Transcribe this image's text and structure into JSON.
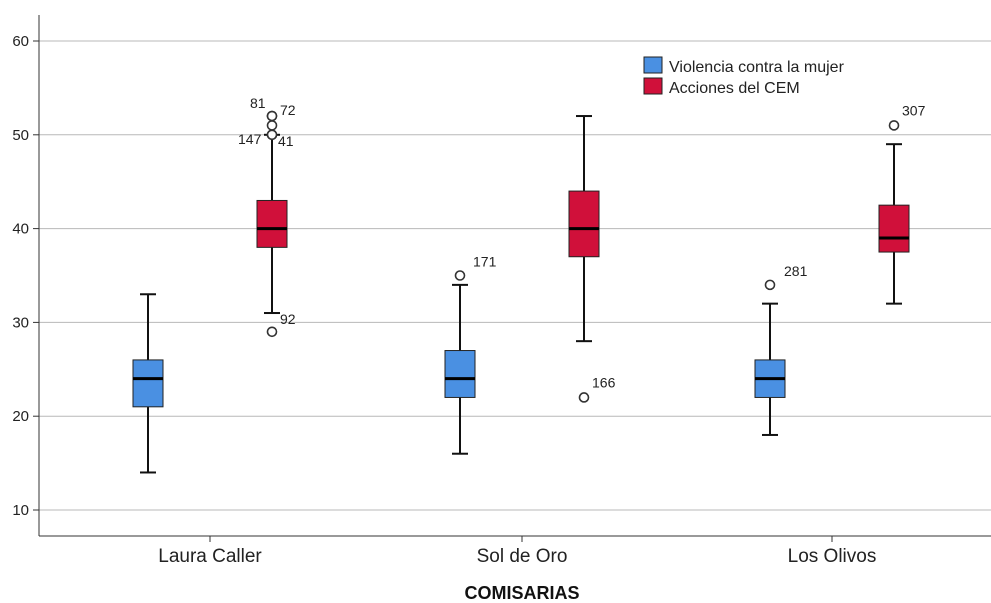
{
  "chart_data": {
    "type": "boxplot",
    "title": "",
    "xlabel": "COMISARIAS",
    "ylabel": "",
    "ylim": [
      7.5,
      64
    ],
    "yticks": [
      10,
      20,
      30,
      40,
      50,
      60
    ],
    "grid": "horizontal",
    "legend_position": "top-right",
    "categories": [
      "Laura Caller",
      "Sol de Oro",
      "Los Olivos"
    ],
    "series": [
      {
        "name": "Violencia contra la mujer",
        "color": "#4a90e2",
        "boxes": [
          {
            "whisker_low": 14,
            "q1": 21,
            "median": 24,
            "q3": 26,
            "whisker_high": 33,
            "outliers": []
          },
          {
            "whisker_low": 16,
            "q1": 22,
            "median": 24,
            "q3": 27,
            "whisker_high": 34,
            "outliers": [
              {
                "value": 35,
                "label": "171"
              }
            ]
          },
          {
            "whisker_low": 18,
            "q1": 22,
            "median": 24,
            "q3": 26,
            "whisker_high": 32,
            "outliers": [
              {
                "value": 34,
                "label": "281"
              }
            ]
          }
        ]
      },
      {
        "name": "Acciones del CEM",
        "color": "#d0103a",
        "boxes": [
          {
            "whisker_low": 31,
            "q1": 38,
            "median": 40,
            "q3": 43,
            "whisker_high": 50,
            "outliers": [
              {
                "value": 52,
                "label": "81"
              },
              {
                "value": 52,
                "label": "72"
              },
              {
                "value": 51,
                "label": ""
              },
              {
                "value": 50,
                "label": "147"
              },
              {
                "value": 50,
                "label": "41"
              },
              {
                "value": 29,
                "label": "92"
              }
            ]
          },
          {
            "whisker_low": 28,
            "q1": 37,
            "median": 40,
            "q3": 44,
            "whisker_high": 52,
            "outliers": [
              {
                "value": 22,
                "label": "166"
              }
            ]
          },
          {
            "whisker_low": 32,
            "q1": 37.5,
            "median": 39,
            "q3": 42.5,
            "whisker_high": 49,
            "outliers": [
              {
                "value": 51,
                "label": "307"
              }
            ]
          }
        ]
      }
    ]
  }
}
